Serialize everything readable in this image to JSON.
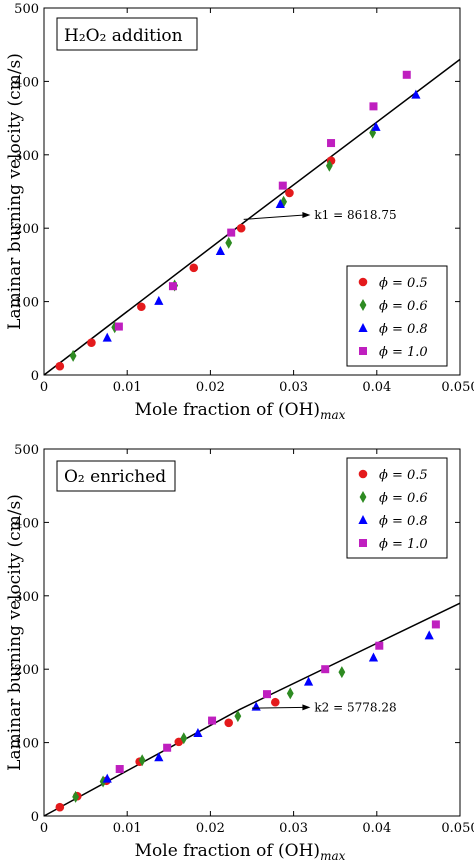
{
  "chart_data": [
    {
      "type": "scatter",
      "title": "H₂O₂ addition",
      "xlabel": "Mole fraction of (OH)",
      "xlabel_sub": "max",
      "ylabel": "Laminar burning velocity (cm/s)",
      "xlim": [
        0,
        0.05
      ],
      "ylim": [
        0,
        500
      ],
      "xticks": [
        "0",
        "0.01",
        "0.02",
        "0.03",
        "0.04",
        "0.050"
      ],
      "yticks": [
        "0",
        "100",
        "200",
        "300",
        "400",
        "500"
      ],
      "legend_position": "bottom-right",
      "annotation": "k1 = 8618.75",
      "annotation_point": [
        0.024,
        212
      ],
      "annotation_text_pos": [
        0.0325,
        218
      ],
      "fit_line": [
        [
          0,
          0
        ],
        [
          0.0245,
          212
        ],
        [
          0.05,
          430
        ]
      ],
      "series": [
        {
          "name": "ϕ = 0.5",
          "marker": "circle",
          "color": "#e41a1c",
          "x": [
            0.0019,
            0.0057,
            0.0117,
            0.018,
            0.0237,
            0.0295,
            0.0345
          ],
          "y": [
            12,
            44,
            93,
            146,
            200,
            248,
            292
          ]
        },
        {
          "name": "ϕ = 0.6",
          "marker": "diamond",
          "color": "#2e8b22",
          "x": [
            0.0035,
            0.0085,
            0.0157,
            0.0222,
            0.0288,
            0.0343,
            0.0395
          ],
          "y": [
            26,
            65,
            122,
            180,
            236,
            285,
            330
          ]
        },
        {
          "name": "ϕ = 0.8",
          "marker": "triangle",
          "color": "#0000ff",
          "x": [
            0.0076,
            0.0138,
            0.0212,
            0.0284,
            0.0399,
            0.0447
          ],
          "y": [
            51,
            101,
            169,
            233,
            338,
            382
          ]
        },
        {
          "name": "ϕ = 1.0",
          "marker": "square",
          "color": "#bf1fbf",
          "x": [
            0.009,
            0.0155,
            0.0225,
            0.0287,
            0.0345,
            0.0396,
            0.0436
          ],
          "y": [
            66,
            121,
            194,
            258,
            316,
            366,
            409
          ]
        }
      ]
    },
    {
      "type": "scatter",
      "title": "O₂ enriched",
      "xlabel": "Mole fraction of (OH)",
      "xlabel_sub": "max",
      "ylabel": "Laminar burning velocity (cm/s)",
      "xlim": [
        0,
        0.05
      ],
      "ylim": [
        0,
        500
      ],
      "xticks": [
        "0",
        "0.01",
        "0.02",
        "0.03",
        "0.04",
        "0.050"
      ],
      "yticks": [
        "0",
        "100",
        "200",
        "300",
        "400",
        "500"
      ],
      "legend_position": "top-right",
      "annotation": "k2 = 5778.28",
      "annotation_point": [
        0.025,
        147
      ],
      "annotation_text_pos": [
        0.0325,
        148
      ],
      "fit_line": [
        [
          0,
          0
        ],
        [
          0.0235,
          145
        ],
        [
          0.05,
          290
        ]
      ],
      "series": [
        {
          "name": "ϕ = 0.5",
          "marker": "circle",
          "color": "#e41a1c",
          "x": [
            0.0019,
            0.004,
            0.0075,
            0.0115,
            0.0162,
            0.0222,
            0.0278
          ],
          "y": [
            12,
            27,
            48,
            74,
            101,
            127,
            155
          ]
        },
        {
          "name": "ϕ = 0.6",
          "marker": "diamond",
          "color": "#2e8b22",
          "x": [
            0.0038,
            0.0071,
            0.0118,
            0.0168,
            0.0233,
            0.0296,
            0.0358
          ],
          "y": [
            26,
            47,
            76,
            106,
            136,
            167,
            196
          ]
        },
        {
          "name": "ϕ = 0.8",
          "marker": "triangle",
          "color": "#0000ff",
          "x": [
            0.0076,
            0.0138,
            0.0185,
            0.0255,
            0.0318,
            0.0396,
            0.0463
          ],
          "y": [
            51,
            80,
            113,
            149,
            183,
            216,
            246
          ]
        },
        {
          "name": "ϕ = 1.0",
          "marker": "square",
          "color": "#bf1fbf",
          "x": [
            0.0091,
            0.0148,
            0.0202,
            0.0268,
            0.0338,
            0.0403,
            0.0471
          ],
          "y": [
            64,
            93,
            130,
            166,
            200,
            232,
            261
          ]
        }
      ]
    }
  ]
}
